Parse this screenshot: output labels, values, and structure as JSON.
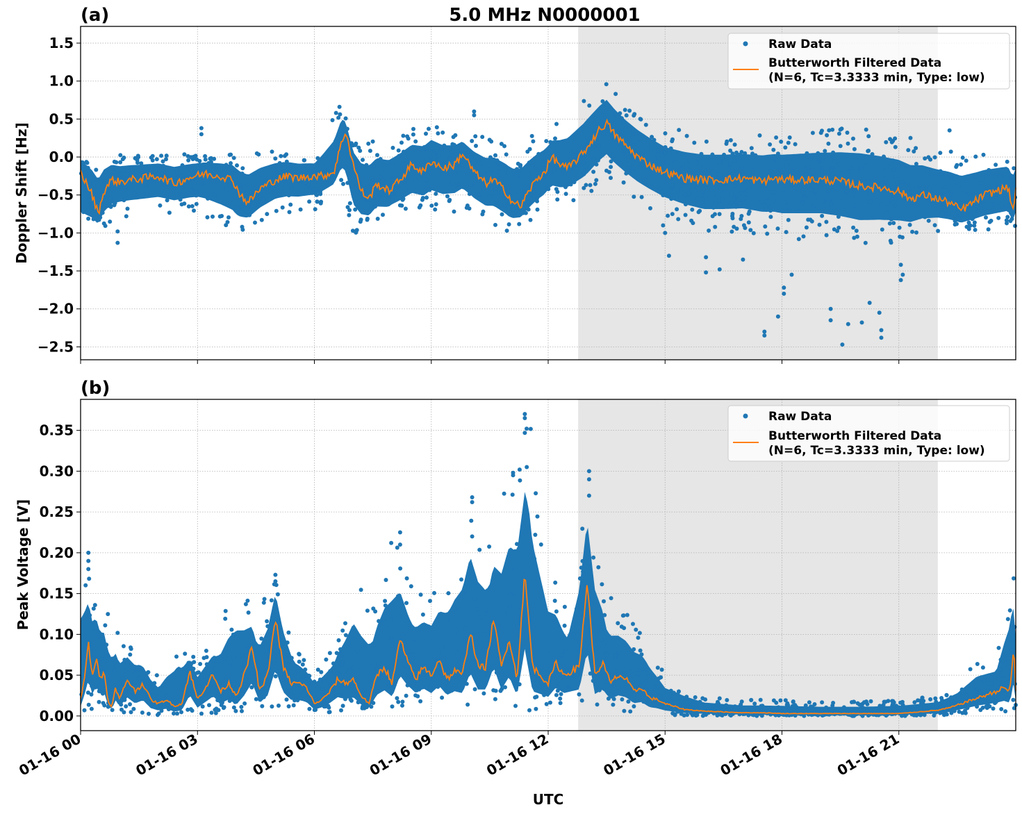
{
  "chart_data": {
    "type": "scatter",
    "figure_title": "5.0 MHz N0000001",
    "xlabel": "UTC",
    "x_unit": "hours since 01-16 00:00 UTC",
    "xlim": [
      0,
      24
    ],
    "x_ticks": [
      0,
      3,
      6,
      9,
      12,
      15,
      18,
      21
    ],
    "x_tick_labels": [
      "01-16 00",
      "01-16 03",
      "01-16 06",
      "01-16 09",
      "01-16 12",
      "01-16 15",
      "01-16 18",
      "01-16 21"
    ],
    "shaded_region": {
      "x_start": 12.77,
      "x_end": 22.0,
      "color": "#e6e6e6"
    },
    "colors": {
      "raw": "#1f77b4",
      "filtered": "#ff7f0e"
    },
    "legend": {
      "placement": "upper right",
      "raw_label": "Raw Data",
      "filtered_label_line1": "Butterworth Filtered Data",
      "filtered_label_line2": "(N=6, Tc=3.3333 min, Type: low)"
    },
    "grid": true,
    "panels": [
      {
        "id": "a",
        "panel_label": "(a)",
        "ylabel": "Doppler Shift [Hz]",
        "ylim": [
          -2.67,
          1.72
        ],
        "y_ticks": [
          1.5,
          1.0,
          0.5,
          0.0,
          -0.5,
          -1.0,
          -1.5,
          -2.0,
          -2.5
        ],
        "y_tick_labels": [
          "1.5",
          "1.0",
          "0.5",
          "0.0",
          "−0.5",
          "−1.0",
          "−1.5",
          "−2.0",
          "−2.5"
        ],
        "series": [
          {
            "name": "Butterworth Filtered Data",
            "kind": "line",
            "x": [
              0,
              0.15,
              0.3,
              0.45,
              0.6,
              0.8,
              1.0,
              1.3,
              1.6,
              2.0,
              2.4,
              2.8,
              3.2,
              3.6,
              3.9,
              4.1,
              4.3,
              4.6,
              5.0,
              5.3,
              5.6,
              5.9,
              6.2,
              6.5,
              6.65,
              6.8,
              7.0,
              7.2,
              7.4,
              7.6,
              7.9,
              8.2,
              8.5,
              8.8,
              9.0,
              9.3,
              9.6,
              9.8,
              10.1,
              10.4,
              10.6,
              10.9,
              11.1,
              11.3,
              11.5,
              11.7,
              11.9,
              12.1,
              12.3,
              12.5,
              12.7,
              12.9,
              13.1,
              13.3,
              13.5,
              13.7,
              13.9,
              14.1,
              14.3,
              14.6,
              15.0,
              15.5,
              16.0,
              16.5,
              17.0,
              17.5,
              17.8,
              18.0,
              18.5,
              19.0,
              19.5,
              20.0,
              20.5,
              21.0,
              21.3,
              21.6,
              22.0,
              22.3,
              22.6,
              22.9,
              23.2,
              23.5,
              23.8,
              23.92,
              24.0
            ],
            "y": [
              -0.2,
              -0.35,
              -0.5,
              -0.75,
              -0.45,
              -0.3,
              -0.33,
              -0.3,
              -0.28,
              -0.25,
              -0.35,
              -0.27,
              -0.22,
              -0.25,
              -0.3,
              -0.5,
              -0.6,
              -0.42,
              -0.3,
              -0.25,
              -0.28,
              -0.25,
              -0.25,
              -0.2,
              0.1,
              0.35,
              -0.1,
              -0.45,
              -0.55,
              -0.35,
              -0.45,
              -0.3,
              -0.1,
              -0.2,
              -0.05,
              -0.15,
              -0.1,
              0.05,
              -0.2,
              -0.35,
              -0.3,
              -0.45,
              -0.6,
              -0.65,
              -0.45,
              -0.3,
              -0.2,
              0.0,
              -0.1,
              -0.15,
              -0.05,
              0.05,
              0.2,
              0.35,
              0.45,
              0.3,
              0.2,
              0.1,
              0.0,
              -0.1,
              -0.2,
              -0.28,
              -0.3,
              -0.3,
              -0.28,
              -0.32,
              -0.28,
              -0.3,
              -0.3,
              -0.3,
              -0.32,
              -0.38,
              -0.4,
              -0.45,
              -0.55,
              -0.5,
              -0.55,
              -0.6,
              -0.7,
              -0.6,
              -0.5,
              -0.45,
              -0.4,
              -0.7,
              -0.45
            ]
          },
          {
            "name": "Raw Data",
            "kind": "scatter-band",
            "note": "dense point cloud around the filtered line; band width values in Hz",
            "x": [
              0,
              1,
              2,
              3,
              4,
              5,
              6,
              6.7,
              7,
              8,
              9,
              10,
              11,
              12,
              13,
              13.5,
              14,
              15,
              16,
              17,
              18,
              19,
              20,
              21,
              22,
              23,
              24
            ],
            "y_upper": [
              0.1,
              0.05,
              0.05,
              0.05,
              0.05,
              0.1,
              0.05,
              0.75,
              0.2,
              0.3,
              0.45,
              0.3,
              0.2,
              0.35,
              0.8,
              1.0,
              0.75,
              0.4,
              0.3,
              0.3,
              0.3,
              0.35,
              0.4,
              0.3,
              0.15,
              0.1,
              0.1
            ],
            "y_lower": [
              -1.15,
              -0.8,
              -0.75,
              -0.75,
              -1.05,
              -0.75,
              -0.7,
              -0.4,
              -1.05,
              -0.8,
              -0.75,
              -0.8,
              -1.0,
              -0.7,
              -0.5,
              -0.3,
              -0.5,
              -0.8,
              -1.0,
              -1.0,
              -1.1,
              -1.1,
              -1.2,
              -1.15,
              -1.0,
              -1.0,
              -0.95
            ]
          },
          {
            "name": "Raw Data outliers",
            "kind": "scatter",
            "x": [
              0.95,
              0.95,
              3.1,
              3.1,
              10.1,
              10.1,
              16.05,
              16.05,
              16.4,
              17.55,
              17.55,
              17.9,
              18.05,
              18.05,
              18.25,
              19.25,
              19.25,
              19.55,
              19.7,
              20.05,
              20.25,
              20.55,
              20.55,
              21.05,
              21.05,
              21.1,
              15.0,
              15.1,
              14.95,
              17.0,
              20.5,
              22.3
            ],
            "y": [
              -1.13,
              -0.98,
              0.38,
              0.3,
              0.6,
              0.55,
              -1.52,
              -1.32,
              -1.48,
              -2.35,
              -2.3,
              -2.1,
              -1.8,
              -1.72,
              -1.55,
              -2.0,
              -2.15,
              -2.47,
              -2.2,
              -2.18,
              -1.92,
              -2.38,
              -2.28,
              -1.62,
              -1.42,
              -1.55,
              -1.0,
              -1.3,
              -0.9,
              -1.35,
              -2.05,
              0.35
            ]
          }
        ]
      },
      {
        "id": "b",
        "panel_label": "(b)",
        "ylabel": "Peak Voltage [V]",
        "ylim": [
          -0.018,
          0.388
        ],
        "y_ticks": [
          0.35,
          0.3,
          0.25,
          0.2,
          0.15,
          0.1,
          0.05,
          0.0
        ],
        "y_tick_labels": [
          "0.35",
          "0.30",
          "0.25",
          "0.20",
          "0.15",
          "0.10",
          "0.05",
          "0.00"
        ],
        "series": [
          {
            "name": "Butterworth Filtered Data",
            "kind": "line",
            "x": [
              0,
              0.1,
              0.2,
              0.3,
              0.4,
              0.5,
              0.6,
              0.7,
              0.8,
              0.9,
              1.0,
              1.2,
              1.4,
              1.6,
              1.8,
              2.0,
              2.2,
              2.4,
              2.6,
              2.8,
              3.0,
              3.2,
              3.4,
              3.6,
              3.8,
              4.0,
              4.2,
              4.4,
              4.6,
              4.8,
              5.0,
              5.2,
              5.4,
              5.6,
              5.8,
              6.0,
              6.2,
              6.4,
              6.6,
              6.8,
              7.0,
              7.2,
              7.4,
              7.6,
              7.8,
              8.0,
              8.2,
              8.4,
              8.6,
              8.8,
              9.0,
              9.2,
              9.4,
              9.6,
              9.8,
              10.0,
              10.2,
              10.4,
              10.6,
              10.8,
              11.0,
              11.2,
              11.4,
              11.6,
              11.8,
              12.0,
              12.2,
              12.4,
              12.6,
              12.8,
              13.0,
              13.2,
              13.4,
              13.6,
              13.8,
              14.0,
              14.2,
              14.4,
              14.6,
              14.8,
              15.0,
              15.5,
              16.0,
              16.5,
              17.0,
              17.5,
              18.0,
              18.5,
              19.0,
              19.5,
              20.0,
              20.5,
              21.0,
              21.5,
              22.0,
              22.3,
              22.6,
              22.9,
              23.2,
              23.5,
              23.7,
              23.85,
              23.95,
              24.0
            ],
            "y": [
              0.02,
              0.05,
              0.09,
              0.05,
              0.07,
              0.045,
              0.055,
              0.02,
              0.01,
              0.035,
              0.02,
              0.045,
              0.03,
              0.04,
              0.02,
              0.015,
              0.02,
              0.012,
              0.015,
              0.055,
              0.02,
              0.035,
              0.05,
              0.03,
              0.04,
              0.025,
              0.05,
              0.085,
              0.03,
              0.05,
              0.12,
              0.06,
              0.04,
              0.04,
              0.035,
              0.015,
              0.02,
              0.03,
              0.045,
              0.04,
              0.045,
              0.025,
              0.015,
              0.05,
              0.06,
              0.04,
              0.095,
              0.065,
              0.045,
              0.06,
              0.05,
              0.07,
              0.045,
              0.055,
              0.05,
              0.105,
              0.06,
              0.06,
              0.12,
              0.06,
              0.095,
              0.045,
              0.175,
              0.06,
              0.05,
              0.04,
              0.065,
              0.05,
              0.055,
              0.06,
              0.165,
              0.05,
              0.065,
              0.04,
              0.05,
              0.045,
              0.03,
              0.035,
              0.022,
              0.02,
              0.015,
              0.008,
              0.006,
              0.005,
              0.004,
              0.004,
              0.003,
              0.003,
              0.003,
              0.003,
              0.003,
              0.003,
              0.003,
              0.005,
              0.007,
              0.01,
              0.015,
              0.02,
              0.025,
              0.03,
              0.035,
              0.03,
              0.085,
              0.03
            ]
          },
          {
            "name": "Raw Data",
            "kind": "scatter-band",
            "note": "dense point cloud; values in V",
            "x": [
              0,
              0.5,
              1,
              1.5,
              2,
              2.5,
              3,
              3.5,
              4,
              4.5,
              5,
              5.5,
              6,
              6.5,
              7,
              7.5,
              8,
              8.5,
              9,
              9.5,
              10,
              10.5,
              11,
              11.5,
              12,
              12.5,
              13,
              13.5,
              14,
              14.5,
              15,
              16,
              17,
              18,
              19,
              20,
              21,
              22,
              22.5,
              23,
              23.5,
              23.9,
              24
            ],
            "y_upper": [
              0.2,
              0.15,
              0.1,
              0.085,
              0.05,
              0.1,
              0.07,
              0.1,
              0.17,
              0.12,
              0.175,
              0.085,
              0.06,
              0.085,
              0.17,
              0.14,
              0.225,
              0.16,
              0.16,
              0.2,
              0.27,
              0.22,
              0.3,
              0.37,
              0.2,
              0.13,
              0.3,
              0.15,
              0.13,
              0.1,
              0.05,
              0.025,
              0.02,
              0.02,
              0.018,
              0.018,
              0.02,
              0.025,
              0.04,
              0.07,
              0.075,
              0.19,
              0.15
            ],
            "y_lower": [
              0.005,
              0.01,
              0.005,
              0.003,
              0.0,
              0.0,
              0.002,
              0.003,
              0.005,
              0.005,
              0.005,
              0.003,
              0.002,
              0.005,
              0.005,
              0.005,
              0.01,
              0.015,
              0.01,
              0.01,
              0.01,
              0.01,
              0.01,
              0.005,
              0.01,
              0.01,
              0.01,
              0.005,
              0.005,
              0.002,
              0.0,
              0.0,
              0.0,
              0.0,
              0.0,
              0.0,
              0.0,
              0.0,
              0.002,
              0.005,
              0.005,
              0.005,
              0.01
            ]
          },
          {
            "name": "Raw Data outliers",
            "kind": "scatter",
            "x": [
              0.2,
              0.2,
              0.2,
              10.05,
              10.05,
              10.05,
              11.1,
              11.1,
              11.4,
              11.4,
              11.4,
              11.45,
              13.05,
              13.05,
              13.05,
              8.2,
              8.2,
              5.0,
              5.0
            ],
            "y": [
              0.2,
              0.19,
              0.18,
              0.268,
              0.262,
              0.22,
              0.298,
              0.295,
              0.37,
              0.365,
              0.347,
              0.305,
              0.3,
              0.29,
              0.27,
              0.225,
              0.21,
              0.173,
              0.165
            ]
          }
        ]
      }
    ]
  }
}
